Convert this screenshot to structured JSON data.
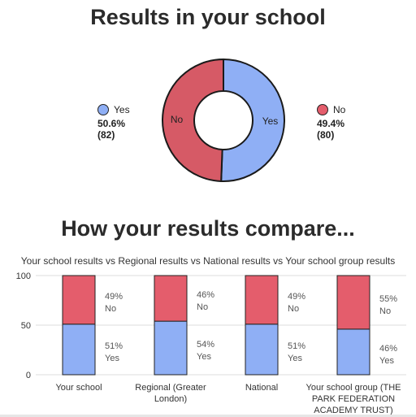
{
  "title": "Results in your school",
  "compare_title": "How your results compare...",
  "colors": {
    "yes": "#8faff5",
    "no": "#e45d6c",
    "donut_no": "#d65a66",
    "grid": "#dddddd"
  },
  "legend": {
    "yes": {
      "label": "Yes",
      "pct": "50.6%",
      "count": "(82)"
    },
    "no": {
      "label": "No",
      "pct": "49.4%",
      "count": "(80)"
    }
  },
  "chart_data": [
    {
      "type": "pie",
      "title": "Results in your school",
      "labels": [
        "Yes",
        "No"
      ],
      "values": [
        50.6,
        49.4
      ],
      "counts": [
        82,
        80
      ],
      "donut": true
    },
    {
      "type": "bar",
      "stacked": true,
      "title": "How your results compare...",
      "subtitle": "Your school results vs Regional results vs National results vs Your school group results",
      "categories": [
        "Your school",
        "Regional (Greater London)",
        "National",
        "Your school group (THE PARK FEDERATION ACADEMY TRUST)"
      ],
      "series": [
        {
          "name": "Yes",
          "values": [
            51,
            54,
            51,
            46
          ]
        },
        {
          "name": "No",
          "values": [
            49,
            46,
            49,
            55
          ]
        }
      ],
      "yticks": [
        0,
        50,
        100
      ],
      "ylim": [
        0,
        100
      ],
      "grid": true
    }
  ]
}
